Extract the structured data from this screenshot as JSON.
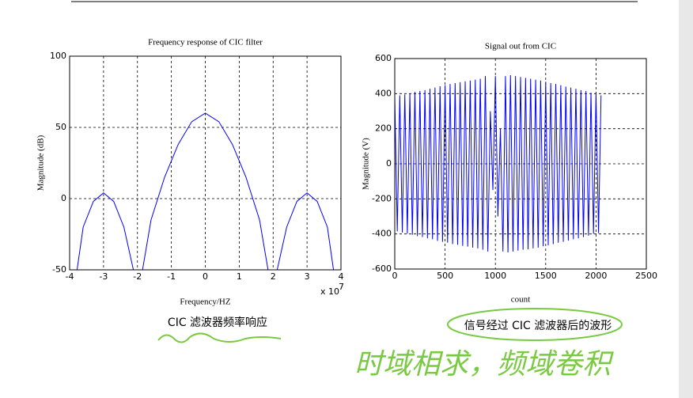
{
  "chart_data": [
    {
      "type": "line",
      "title": "Frequency response of CIC filter",
      "x_label": "Frequency/HZ",
      "y_label": "Magnitude (dB)",
      "x_multiplier": {
        "base": "x 10",
        "exponent": "7"
      },
      "x": [
        -3.78,
        -3.6,
        -3.3,
        -3.0,
        -2.7,
        -2.4,
        -2.12,
        -2.0,
        -1.85,
        -1.6,
        -1.2,
        -0.8,
        -0.4,
        0,
        0.4,
        0.8,
        1.2,
        1.6,
        1.85,
        2.0,
        2.12,
        2.4,
        2.7,
        3.0,
        3.3,
        3.6,
        3.78
      ],
      "series": [
        {
          "color": "#0000ff",
          "values": [
            -50,
            -20,
            -2,
            4,
            -2,
            -20,
            -50,
            null,
            -50,
            -15,
            15,
            38,
            54,
            60,
            54,
            38,
            15,
            -15,
            -50,
            null,
            -50,
            -20,
            -2,
            4,
            -2,
            -20,
            -50
          ]
        }
      ],
      "xlim": [
        -4,
        4
      ],
      "xticks": [
        -4,
        -3,
        -2,
        -1,
        0,
        1,
        2,
        3,
        4
      ],
      "ylim": [
        -50,
        100
      ],
      "yticks": [
        -50,
        0,
        50,
        100
      ],
      "grid": true
    },
    {
      "type": "line",
      "title": "Signal out from CIC",
      "x_label": "count",
      "y_label": "Magnitude (V)",
      "x": [
        0,
        25,
        50,
        75,
        100,
        125,
        150,
        175,
        200,
        225,
        250,
        275,
        300,
        325,
        350,
        375,
        400,
        425,
        450,
        475,
        500,
        525,
        550,
        575,
        600,
        625,
        650,
        675,
        700,
        725,
        750,
        775,
        800,
        825,
        850,
        875,
        900,
        925,
        950,
        975,
        1000,
        1025,
        1050,
        1075,
        1100,
        1125,
        1150,
        1175,
        1200,
        1225,
        1250,
        1275,
        1300,
        1325,
        1350,
        1375,
        1400,
        1425,
        1450,
        1475,
        1500,
        1525,
        1550,
        1575,
        1600,
        1625,
        1650,
        1675,
        1700,
        1725,
        1750,
        1775,
        1800,
        1825,
        1850,
        1875,
        1900,
        1925,
        1950,
        1975,
        2000,
        2025,
        2050
      ],
      "series": [
        {
          "color": "#0000ff",
          "values": [
            380,
            -385,
            390,
            -392,
            395,
            -398,
            400,
            -405,
            410,
            -412,
            415,
            -418,
            420,
            -425,
            428,
            -430,
            435,
            -440,
            442,
            -445,
            448,
            -450,
            455,
            -458,
            460,
            -462,
            465,
            -468,
            470,
            -472,
            475,
            -478,
            480,
            -482,
            485,
            -490,
            500,
            -500,
            300,
            -150,
            500,
            -300,
            200,
            -500,
            500,
            -505,
            505,
            -500,
            500,
            -495,
            495,
            -490,
            490,
            -488,
            485,
            -482,
            480,
            -478,
            475,
            -470,
            468,
            -465,
            460,
            -458,
            455,
            -450,
            448,
            -445,
            440,
            -438,
            435,
            -430,
            428,
            -425,
            420,
            -418,
            415,
            -410,
            405,
            -400,
            398,
            -395,
            390
          ]
        }
      ],
      "xlim": [
        0,
        2500
      ],
      "xticks": [
        0,
        500,
        1000,
        1500,
        2000,
        2500
      ],
      "ylim": [
        -600,
        600
      ],
      "yticks": [
        -600,
        -400,
        -200,
        0,
        200,
        400,
        600
      ],
      "grid": true
    }
  ],
  "captions": [
    "CIC 滤波器频率响应",
    "信号经过 CIC 滤波器后的波形"
  ],
  "handwriting": "时域相求，频域卷积"
}
